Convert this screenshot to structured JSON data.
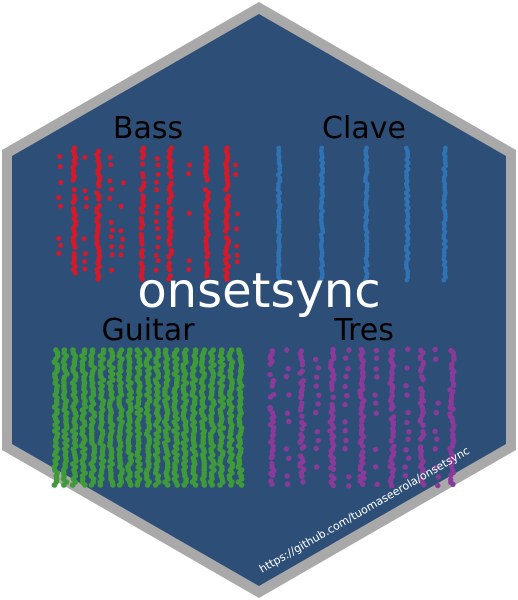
{
  "sticker": {
    "package_name": "onsetsync",
    "url": "https://github.com/tuomaseerola/onsetsync",
    "colors": {
      "background": "#2c4e77",
      "border": "#a9a9a9"
    }
  },
  "instruments": [
    {
      "name": "Bass",
      "color": "#d6192a",
      "pattern": "sparse-grid"
    },
    {
      "name": "Clave",
      "color": "#2f73b5",
      "pattern": "columns"
    },
    {
      "name": "Guitar",
      "color": "#3f9a3a",
      "pattern": "dense-columns"
    },
    {
      "name": "Tres",
      "color": "#8c3a9a",
      "pattern": "mixed"
    }
  ]
}
